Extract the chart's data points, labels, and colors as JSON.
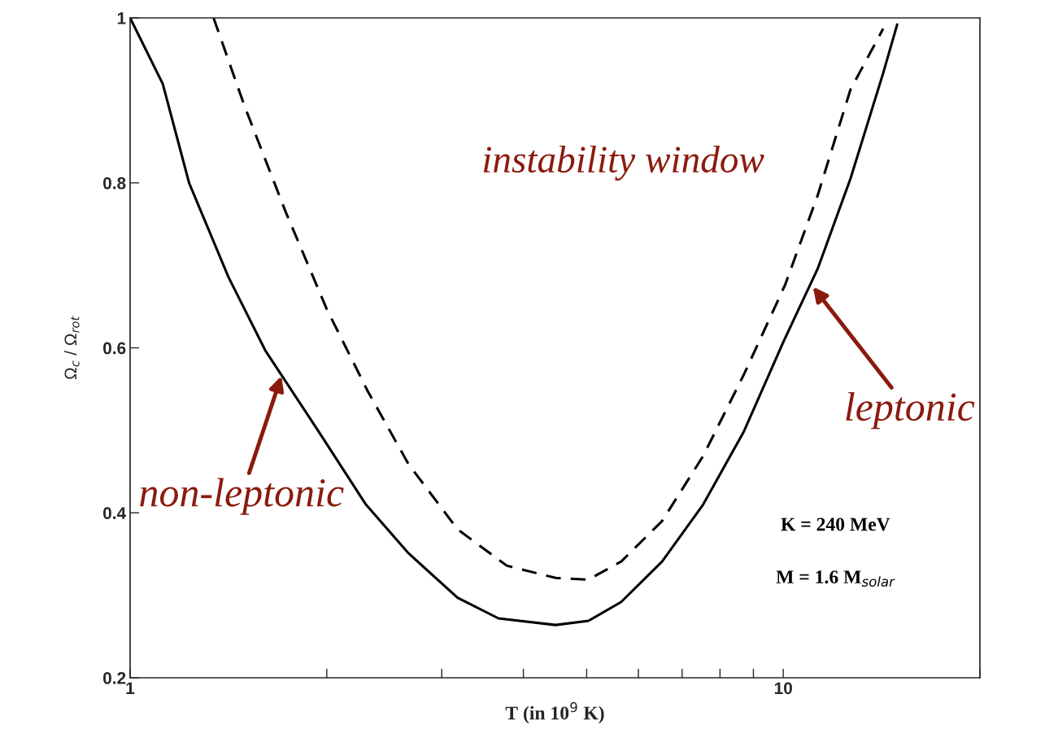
{
  "chart_data": {
    "type": "line",
    "xlabel": "T (in 10$^{9}$ K)",
    "ylabel": "Ω$_{c}$ / Ω$_{rot}$",
    "log": "x",
    "xlim": [
      1,
      20
    ],
    "ylim": [
      0.2,
      1
    ],
    "xticks": [
      1,
      {
        "value": 2,
        "label": null
      },
      {
        "value": 3,
        "label": null
      },
      {
        "value": 4,
        "label": null
      },
      {
        "value": 5,
        "label": null
      },
      {
        "value": 6,
        "label": null
      },
      {
        "value": 7,
        "label": null
      },
      {
        "value": 8,
        "label": null
      },
      {
        "value": 9,
        "label": null
      },
      10,
      {
        "value": 20,
        "label": null
      }
    ],
    "yticks": [
      0.2,
      0.4,
      0.6,
      0.8,
      1
    ],
    "grid": false,
    "legend": false,
    "marker": "none",
    "series": [
      {
        "color": "#000000",
        "line_style": "solid",
        "x": [
          1.0,
          1.122,
          1.231,
          1.414,
          1.61,
          1.942,
          2.296,
          2.668,
          3.172,
          3.664,
          4.483,
          5.031,
          5.648,
          6.523,
          7.539,
          8.707,
          10.0,
          11.29,
          12.67,
          14.22,
          14.94
        ],
        "values": [
          1.0,
          0.92,
          0.8,
          0.686,
          0.597,
          0.499,
          0.41,
          0.351,
          0.297,
          0.272,
          0.264,
          0.269,
          0.292,
          0.341,
          0.41,
          0.499,
          0.607,
          0.696,
          0.805,
          0.933,
          0.992
        ]
      },
      {
        "color": "#000000",
        "line_style": "dashed",
        "x": [
          1.342,
          1.497,
          1.73,
          2.0,
          2.309,
          2.668,
          3.172,
          3.771,
          4.483,
          5.031,
          5.648,
          6.523,
          7.539,
          8.707,
          10.06,
          11.29,
          12.67,
          14.22
        ],
        "values": [
          1.0,
          0.893,
          0.765,
          0.647,
          0.548,
          0.459,
          0.38,
          0.336,
          0.321,
          0.319,
          0.341,
          0.39,
          0.469,
          0.568,
          0.676,
          0.785,
          0.913,
          0.987
        ]
      }
    ],
    "annotations": [
      "instability window",
      {
        "text": "non-leptonic",
        "x": 1.705,
        "y": 0.566
      },
      {
        "text": "leptonic",
        "x": 11.1,
        "y": 0.674
      },
      "K = 240 MeV",
      "M = 1.6 M$_{solar}$"
    ]
  }
}
